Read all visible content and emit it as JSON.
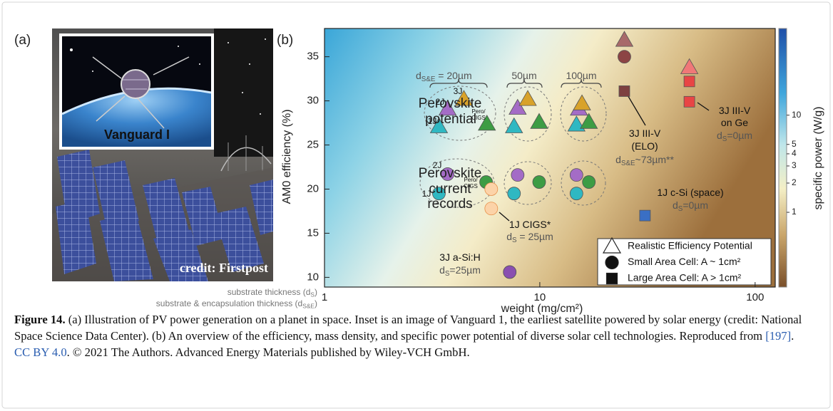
{
  "panel_labels": [
    "(a)",
    "(b)"
  ],
  "panel_a": {
    "inset_label": "Vanguard I",
    "credit": "credit: Firstpost"
  },
  "chart_data": {
    "type": "scatter",
    "xlabel": "weight (mg/cm²)",
    "ylabel": "AM0 efficiency (%)",
    "xscale": "log",
    "xlim": [
      1,
      124
    ],
    "xticks": [
      1,
      10,
      100
    ],
    "ylim": [
      8.9,
      38.2
    ],
    "yticks": [
      10,
      15,
      20,
      25,
      30,
      35
    ],
    "legend": "lower right",
    "series": [
      {
        "name": "Realistic Efficiency Potential",
        "marker": "triangle",
        "x": [
          3.73,
          4.44,
          3.4,
          5.68,
          7.89,
          8.79,
          7.59,
          9.93,
          15.2,
          15.7,
          14.8,
          16.9,
          24.7,
          49.5
        ],
        "y": [
          29.1,
          30.2,
          27.1,
          27.4,
          29.2,
          30.2,
          27.1,
          27.6,
          29.1,
          29.7,
          27.3,
          27.6,
          36.9,
          33.8
        ],
        "colors": [
          "#a46cc6",
          "#d8a22a",
          "#2fb8c2",
          "#3d9c44",
          "#a46cc6",
          "#d8a22a",
          "#2fb8c2",
          "#3d9c44",
          "#a46cc6",
          "#d8a22a",
          "#2fb8c2",
          "#3d9c44",
          "#a86a6a",
          "#f07878"
        ]
      },
      {
        "name": "Small Area Cell: A ~ 1cm²",
        "marker": "circle",
        "x": [
          3.73,
          3.4,
          5.63,
          5.95,
          5.95,
          7.89,
          7.59,
          9.93,
          14.8,
          14.8,
          16.9,
          7.25,
          24.7
        ],
        "y": [
          21.7,
          19.5,
          20.8,
          20.0,
          17.8,
          21.6,
          19.5,
          20.8,
          21.6,
          19.5,
          20.8,
          10.6,
          35.0
        ],
        "colors": [
          "#a46cc6",
          "#2fb8c2",
          "#3d9c44",
          "#fcd3a8",
          "#fcd3a8",
          "#a46cc6",
          "#2fb8c2",
          "#3d9c44",
          "#a46cc6",
          "#2fb8c2",
          "#3d9c44",
          "#8a4fb0",
          "#8c4444"
        ]
      },
      {
        "name": "Large Area Cell: A > 1cm²",
        "marker": "square",
        "x": [
          24.7,
          49.5,
          49.5,
          30.8
        ],
        "y": [
          31.1,
          32.2,
          29.9,
          17.0
        ],
        "colors": [
          "#7d4040",
          "#e84545",
          "#e84545",
          "#3a6fc4"
        ]
      }
    ],
    "colorbar": {
      "label": "specific power (W/g)",
      "scale": "log",
      "clim": [
        0.17,
        78
      ],
      "ticks": [
        1,
        2,
        3,
        4,
        5,
        10
      ]
    },
    "annotations": [
      {
        "text": "Perovskite"
      },
      {
        "text": "potential"
      },
      {
        "text": "Perovskite"
      },
      {
        "text": "current"
      },
      {
        "text": "records"
      },
      {
        "text": "2J"
      },
      {
        "text": "3J"
      },
      {
        "text": "1J"
      },
      {
        "text": "Pero/"
      },
      {
        "text": "CIGS"
      },
      {
        "text": "2J"
      },
      {
        "text": "1J"
      },
      {
        "text": "Pero/"
      },
      {
        "text": "CIGS"
      },
      {
        "text": "d",
        "sub": "S&E",
        "after": " = 20µm"
      },
      {
        "text": "50µm"
      },
      {
        "text": "100µm"
      },
      {
        "text": "3J III-V"
      },
      {
        "text": "(ELO)"
      },
      {
        "text": "d",
        "sub": "S&E",
        "after": "~73µm**"
      },
      {
        "text": "3J III-V"
      },
      {
        "text": "on Ge"
      },
      {
        "text": "d",
        "sub": "S",
        "after": "=0µm"
      },
      {
        "text": "1J c-Si (space)"
      },
      {
        "text": "d",
        "sub": "S",
        "after": "=0µm"
      },
      {
        "text": "1J CIGS*"
      },
      {
        "text": "d",
        "sub": "S",
        "after": " = 25µm"
      },
      {
        "text": "3J a-Si:H"
      },
      {
        "text": "d",
        "sub": "S",
        "after": "=25µm"
      },
      {
        "text": "substrate thickness (d",
        "sub": "S",
        "after": ")"
      },
      {
        "text": "substrate & encapsulation thickness (d",
        "sub": "S&E",
        "after": ")"
      }
    ]
  },
  "caption": {
    "label": "Figure 14.",
    "text": " (a) Illustration of PV power generation on a planet in space. Inset is an image of Vanguard 1, the earliest satellite powered by solar energy (credit: National Space Science Data Center). (b) An overview of the efficiency, mass density, and specific power potential of diverse solar cell technologies. Reproduced from ",
    "reference": "[197]",
    "separator": ". ",
    "license": "CC BY 4.0",
    "rest": ". © 2021 The Authors. Advanced Energy Materials published by Wiley-VCH GmbH."
  }
}
